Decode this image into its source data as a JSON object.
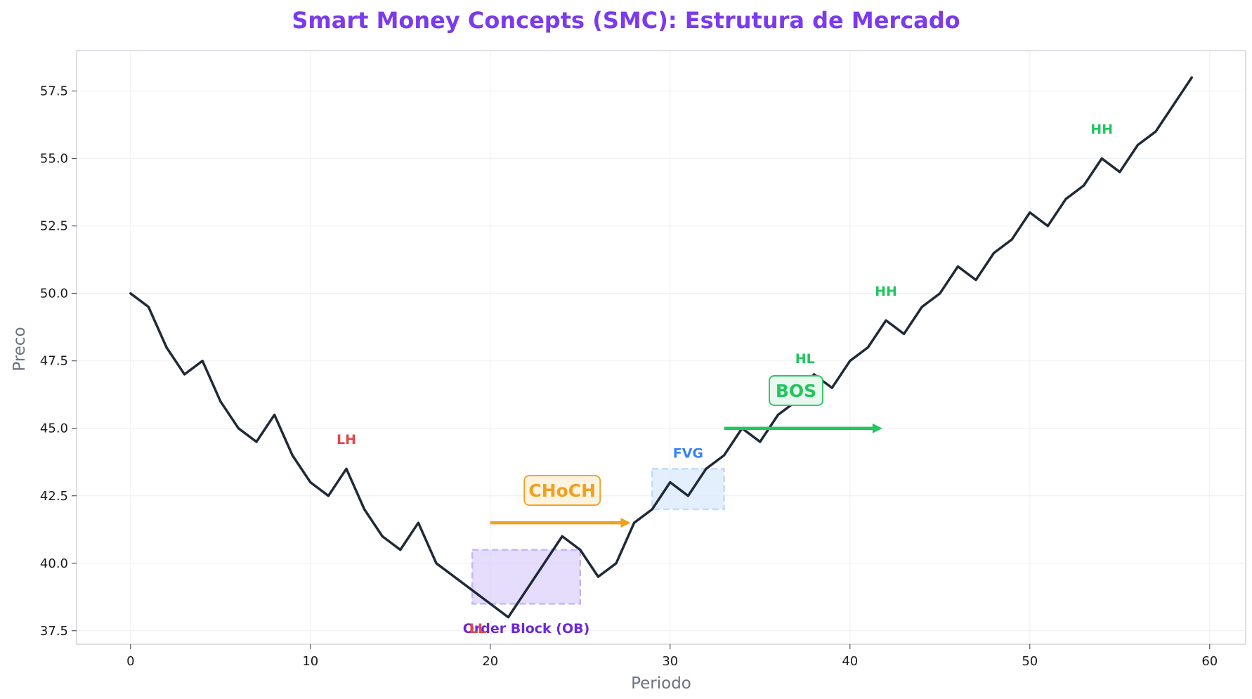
{
  "chart_data": {
    "type": "line",
    "title": "Smart Money Concepts (SMC): Estrutura de Mercado",
    "xlabel": "Periodo",
    "ylabel": "Preco",
    "xlim": [
      -3,
      62
    ],
    "ylim": [
      37.0,
      59.0
    ],
    "xticks": [
      0,
      10,
      20,
      30,
      40,
      50,
      60
    ],
    "yticks": [
      37.5,
      40.0,
      42.5,
      45.0,
      47.5,
      50.0,
      52.5,
      55.0,
      57.5
    ],
    "ytick_labels": [
      "37.5",
      "40.0",
      "42.5",
      "45.0",
      "47.5",
      "50.0",
      "52.5",
      "55.0",
      "57.5"
    ],
    "grid": true,
    "series": [
      {
        "x": [
          0,
          1,
          2,
          3,
          4,
          5,
          6,
          7,
          8,
          9,
          10,
          11,
          12,
          13,
          14,
          15,
          16,
          17,
          18,
          19,
          20,
          21,
          22,
          23,
          24,
          25,
          26,
          27,
          28,
          29,
          30,
          31,
          32,
          33,
          34,
          35,
          36,
          37,
          38,
          39,
          40,
          41,
          42,
          43,
          44,
          45,
          46,
          47,
          48,
          49,
          50,
          51,
          52,
          53,
          54,
          55,
          56,
          57,
          58,
          59
        ],
        "y": [
          50,
          49.5,
          48,
          47,
          47.5,
          46,
          45,
          44.5,
          45.5,
          44,
          43,
          42.5,
          43.5,
          42,
          41,
          40.5,
          41.5,
          40,
          39.5,
          39,
          38.5,
          38,
          39,
          40,
          41,
          40.5,
          39.5,
          40,
          41.5,
          42,
          43,
          42.5,
          43.5,
          44,
          45,
          44.5,
          45.5,
          46,
          47,
          46.5,
          47.5,
          48,
          49,
          48.5,
          49.5,
          50,
          51,
          50.5,
          51.5,
          52,
          53,
          52.5,
          53.5,
          54,
          55,
          54.5,
          55.5,
          56,
          57,
          58
        ],
        "color": "#1f2937"
      }
    ],
    "swing_labels": [
      {
        "text": "LH",
        "x": 12,
        "y": 44.6,
        "color": "#e04848"
      },
      {
        "text": "LL",
        "x": 19.3,
        "y": 37.6,
        "color": "#e04848"
      },
      {
        "text": "HL",
        "x": 37.5,
        "y": 47.6,
        "color": "#22c55e"
      },
      {
        "text": "HH",
        "x": 42,
        "y": 50.1,
        "color": "#22c55e"
      },
      {
        "text": "HH",
        "x": 54,
        "y": 56.1,
        "color": "#22c55e"
      }
    ],
    "zones": [
      {
        "label": "Order Block (OB)",
        "x0": 19,
        "x1": 25,
        "y0": 38.5,
        "y1": 40.5,
        "fill": "#ddd0fb",
        "stroke": "#c4b5fd",
        "label_color": "#6d28d9",
        "label_x": 22,
        "label_y": 37.6
      },
      {
        "label": "FVG",
        "x0": 29,
        "x1": 33,
        "y0": 42,
        "y1": 43.5,
        "fill": "#dbeafe",
        "stroke": "#bfdbfe",
        "label_color": "#3b82f6",
        "label_x": 31,
        "label_y": 44.1
      }
    ],
    "arrows": [
      {
        "label": "CHoCH",
        "x0": 20,
        "x1": 27.8,
        "y": 41.5,
        "color": "#f0a020",
        "box_fill": "#fdf3e1",
        "label_x": 24,
        "label_y": 42.7
      },
      {
        "label": "BOS",
        "x0": 33,
        "x1": 41.8,
        "y": 45,
        "color": "#22c55e",
        "box_fill": "#e8f8ee",
        "label_x": 37,
        "label_y": 46.4
      }
    ],
    "colors": {
      "title": "#7c3aed",
      "line": "#1f2937",
      "bearish": "#e04848",
      "bullish": "#22c55e"
    }
  }
}
